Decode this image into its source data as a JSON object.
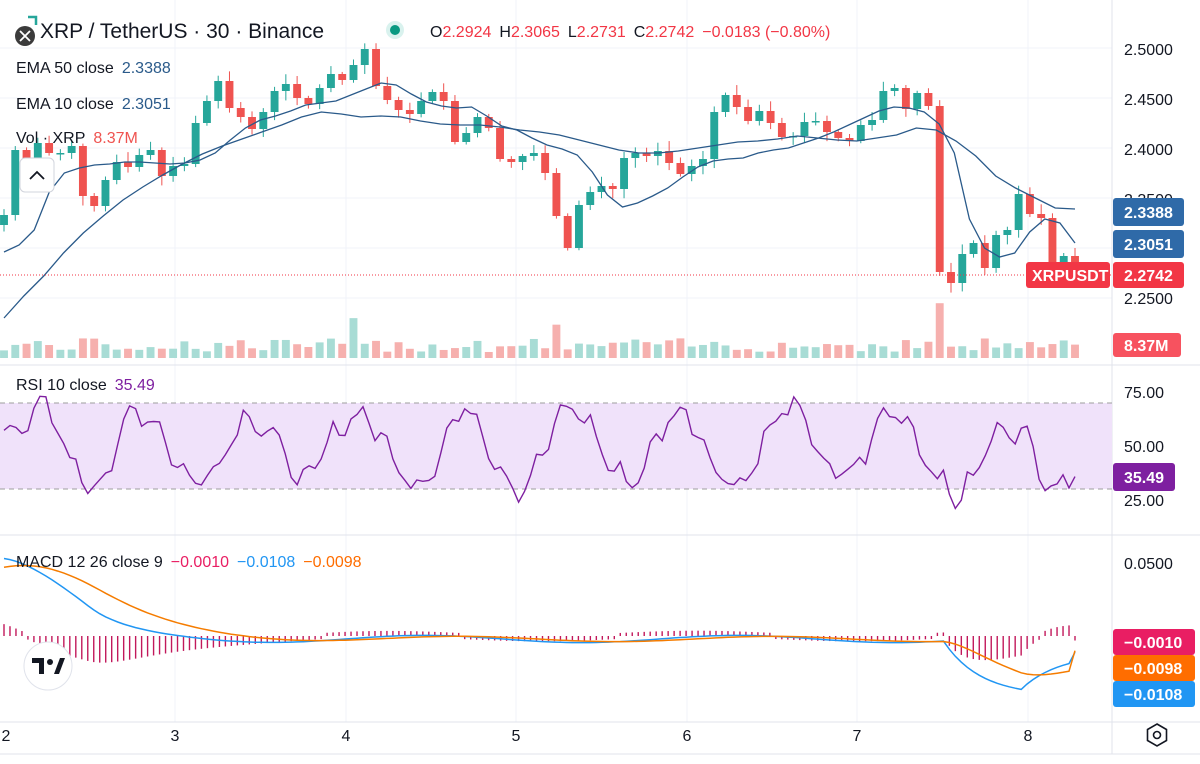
{
  "header": {
    "symbol_title": "XRP / TetherUS · 30 · Binance",
    "ohlc": [
      {
        "label": "O",
        "value": "2.2924"
      },
      {
        "label": "H",
        "value": "2.3065"
      },
      {
        "label": "L",
        "value": "2.2731"
      },
      {
        "label": "C",
        "value": "2.2742"
      }
    ],
    "change": "−0.0183 (−0.80%)"
  },
  "legend": {
    "ema50_label": "EMA 50 close",
    "ema50_value": "2.3388",
    "ema10_label": "EMA 10 close",
    "ema10_value": "2.3051",
    "vol_label": "Vol · XRP",
    "vol_value": "8.37M",
    "rsi_label": "RSI 10 close",
    "rsi_value": "35.49",
    "macd_label": "MACD 12 26 close 9",
    "macd_hist_value": "−0.0010",
    "macd_line_value": "−0.0108",
    "macd_signal_value": "−0.0098"
  },
  "price_axis_ticks": [
    "2.5000",
    "2.4500",
    "2.4000",
    "2.3500",
    "2.2500"
  ],
  "rsi_axis_ticks": [
    "75.00",
    "50.00",
    "25.00"
  ],
  "macd_axis_ticks": [
    "0.0500"
  ],
  "x_axis_ticks": [
    "2",
    "3",
    "4",
    "5",
    "6",
    "7",
    "8"
  ],
  "price_badges": {
    "ema50": "2.3388",
    "ema10": "2.3051",
    "symbol": "XRPUSDT",
    "last": "2.2742",
    "volume": "8.37M",
    "rsi": "35.49",
    "macd_hist": "−0.0010",
    "macd_signal": "−0.0098",
    "macd_line": "−0.0108"
  },
  "colors": {
    "up": "#26a69a",
    "down": "#ef5350",
    "ema": "#2a5a8a",
    "rsi": "#7e1fa0",
    "rsi_band": "#f0e2fa",
    "macd_line": "#2196f3",
    "macd_signal": "#f57c00",
    "macd_hist": "#c2185b",
    "badge_blue": "#2f6aa8",
    "badge_red": "#f23645",
    "badge_purple": "#7e1fa0",
    "badge_pink": "#e91e63",
    "badge_orange": "#ff6d00",
    "badge_lightblue": "#2196f3"
  },
  "icons": [
    "binance-logo-icon",
    "collapse-chevron-icon",
    "tradingview-logo-icon",
    "settings-gear-icon",
    "status-dot-icon"
  ],
  "chart_data": {
    "type": "candlestick",
    "x_ticks": [
      "2",
      "3",
      "4",
      "5",
      "6",
      "7",
      "8"
    ],
    "price_range": [
      2.22,
      2.51
    ],
    "ohlc_last": {
      "open": 2.2924,
      "high": 2.3065,
      "low": 2.2731,
      "close": 2.2742
    },
    "closes": [
      2.333,
      2.398,
      2.388,
      2.405,
      2.395,
      2.395,
      2.402,
      2.352,
      2.342,
      2.368,
      2.386,
      2.381,
      2.393,
      2.398,
      2.372,
      2.382,
      2.384,
      2.425,
      2.447,
      2.467,
      2.44,
      2.431,
      2.419,
      2.436,
      2.457,
      2.464,
      2.45,
      2.444,
      2.46,
      2.474,
      2.468,
      2.483,
      2.499,
      2.462,
      2.448,
      2.438,
      2.434,
      2.447,
      2.456,
      2.447,
      2.406,
      2.415,
      2.431,
      2.42,
      2.389,
      2.386,
      2.392,
      2.395,
      2.375,
      2.332,
      2.3,
      2.343,
      2.356,
      2.362,
      2.359,
      2.39,
      2.395,
      2.392,
      2.397,
      2.385,
      2.374,
      2.382,
      2.389,
      2.436,
      2.453,
      2.441,
      2.427,
      2.437,
      2.425,
      2.411,
      2.412,
      2.426,
      2.427,
      2.416,
      2.41,
      2.407,
      2.423,
      2.428,
      2.457,
      2.46,
      2.439,
      2.455,
      2.442,
      2.276,
      2.265,
      2.294,
      2.305,
      2.28,
      2.313,
      2.318,
      2.354,
      2.334,
      2.33,
      2.286,
      2.292,
      2.274
    ],
    "ema10": [
      2.296,
      2.303,
      2.318,
      2.356,
      2.375,
      2.38,
      2.383,
      2.384,
      2.386,
      2.386,
      2.385,
      2.384,
      2.385,
      2.388,
      2.395,
      2.408,
      2.42,
      2.428,
      2.432,
      2.437,
      2.443,
      2.445,
      2.447,
      2.453,
      2.459,
      2.465,
      2.463,
      2.454,
      2.446,
      2.442,
      2.44,
      2.441,
      2.432,
      2.422,
      2.418,
      2.41,
      2.403,
      2.399,
      2.393,
      2.376,
      2.353,
      2.341,
      2.345,
      2.352,
      2.36,
      2.371,
      2.381,
      2.387,
      2.389,
      2.39,
      2.395,
      2.398,
      2.4,
      2.405,
      2.41,
      2.416,
      2.423,
      2.43,
      2.437,
      2.441,
      2.44,
      2.436,
      2.424,
      2.395,
      2.329,
      2.3,
      2.291,
      2.295,
      2.316,
      2.329,
      2.325,
      2.305
    ],
    "ema50": [
      2.23,
      2.252,
      2.272,
      2.295,
      2.315,
      2.332,
      2.348,
      2.361,
      2.373,
      2.384,
      2.394,
      2.402,
      2.409,
      2.416,
      2.423,
      2.431,
      2.436,
      2.434,
      2.431,
      2.432,
      2.431,
      2.427,
      2.424,
      2.423,
      2.423,
      2.421,
      2.418,
      2.416,
      2.413,
      2.408,
      2.403,
      2.398,
      2.395,
      2.395,
      2.397,
      2.4,
      2.403,
      2.406,
      2.407,
      2.409,
      2.412,
      2.41,
      2.408,
      2.407,
      2.41,
      2.413,
      2.42,
      2.418,
      2.407,
      2.392,
      2.372,
      2.36,
      2.35,
      2.34,
      2.339
    ],
    "rsi": {
      "last": 35.49,
      "band": [
        30,
        70
      ],
      "range": [
        15,
        85
      ]
    },
    "macd": {
      "macd": -0.0108,
      "signal": -0.0098,
      "histogram": -0.001
    }
  }
}
